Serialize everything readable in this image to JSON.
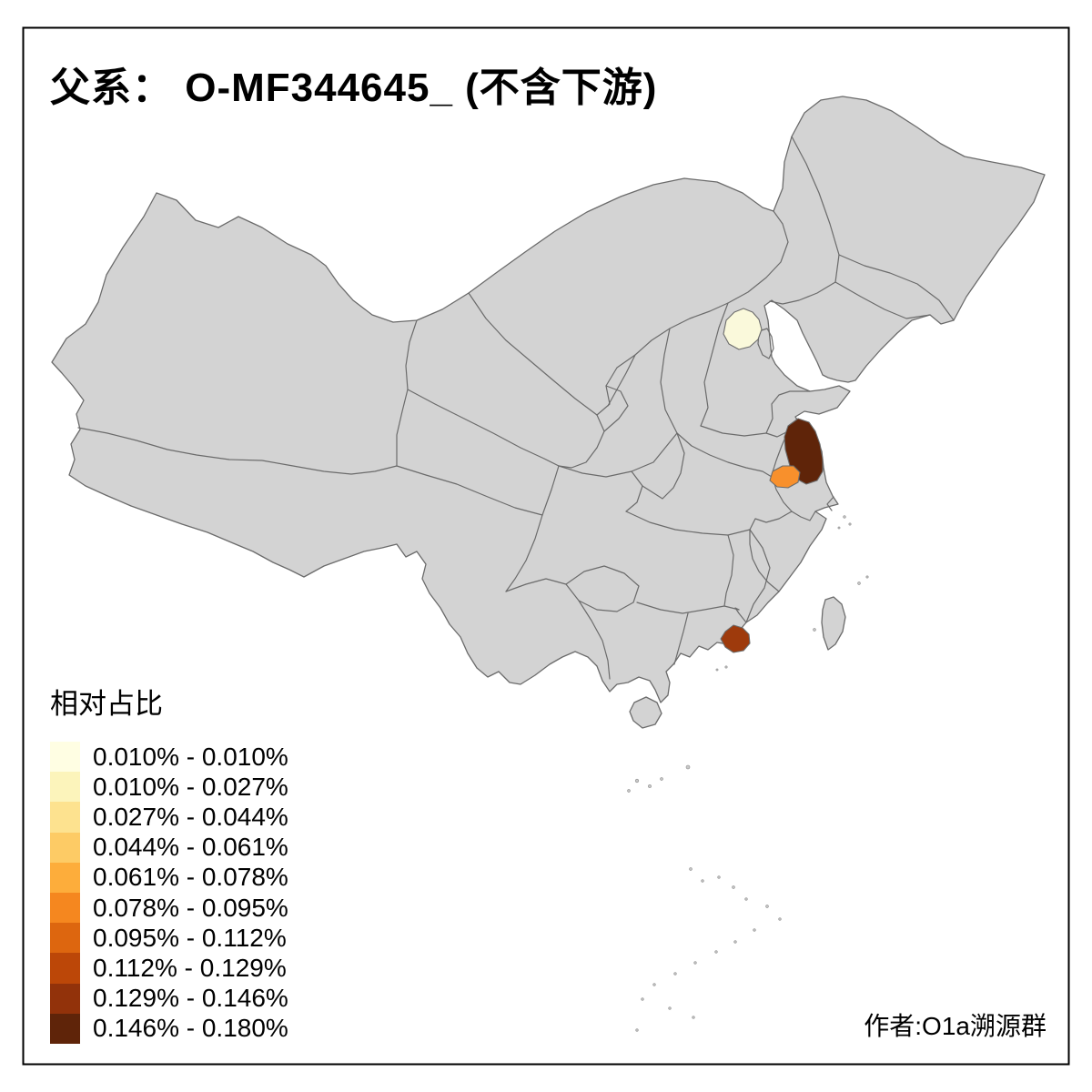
{
  "title": "父系： O-MF344645_ (不含下游)",
  "attribution": "作者:O1a溯源群",
  "legend": {
    "title": "相对占比",
    "classes": [
      {
        "range": "0.010% - 0.010%",
        "color": "#FFFEE3"
      },
      {
        "range": "0.010% - 0.027%",
        "color": "#FCF4BB"
      },
      {
        "range": "0.027% - 0.044%",
        "color": "#FDE28F"
      },
      {
        "range": "0.044% - 0.061%",
        "color": "#FDCB65"
      },
      {
        "range": "0.061% - 0.078%",
        "color": "#FDAD3B"
      },
      {
        "range": "0.078% - 0.095%",
        "color": "#F5871F"
      },
      {
        "range": "0.095% - 0.112%",
        "color": "#DD660F"
      },
      {
        "range": "0.112% - 0.129%",
        "color": "#BC4708"
      },
      {
        "range": "0.129% - 0.146%",
        "color": "#92320A"
      },
      {
        "range": "0.146% - 0.180%",
        "color": "#5F2409"
      }
    ]
  },
  "map": {
    "land_color": "#D3D3D3",
    "border_color": "#6B6B6B",
    "sea_color": "#FFFFFF",
    "frame_color": "#000000",
    "regions": {
      "beijing": {
        "class_range": "0.010% - 0.010%",
        "color": "#FAF9DB"
      },
      "north-jiangsu": {
        "class_range": "0.146% - 0.180%",
        "color": "#5F2409"
      },
      "central-jiangsu": {
        "class_range": "0.078% - 0.095%",
        "color": "#F8902C"
      },
      "east-guangdong": {
        "class_range": "0.129% - 0.146%",
        "color": "#9E3A0C"
      }
    }
  }
}
